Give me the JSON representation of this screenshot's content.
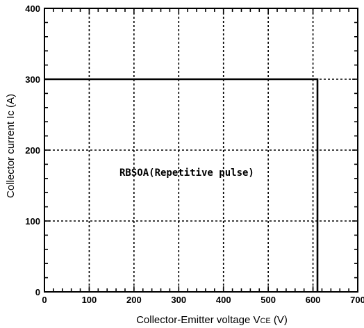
{
  "chart_data": {
    "type": "line",
    "annotation": "RBSOA(Repetitive pulse)",
    "xlabel": {
      "main": "Collector-Emitter voltage  V",
      "sub": "CE",
      "unit": " (V)"
    },
    "ylabel": {
      "main": "Collector current  Ic  (A)"
    },
    "xlim": [
      0,
      700
    ],
    "ylim": [
      0,
      400
    ],
    "x_major_ticks": [
      0,
      100,
      200,
      300,
      400,
      500,
      600,
      700
    ],
    "y_major_ticks": [
      0,
      100,
      200,
      300,
      400
    ],
    "x_minor_step": 20,
    "y_minor_step": 20,
    "grid": true,
    "series": [
      {
        "x": [
          0,
          610,
          610
        ],
        "y": [
          300,
          300,
          0
        ]
      }
    ]
  }
}
